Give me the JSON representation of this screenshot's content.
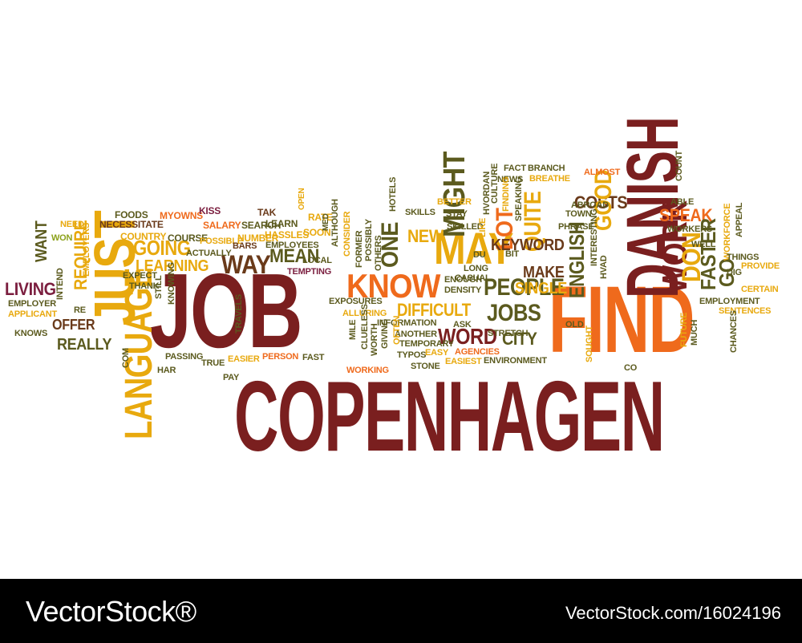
{
  "palette": {
    "maroon": "#7a1f1f",
    "orange": "#ef6a1c",
    "gold": "#e8a90e",
    "olive": "#5b5a1e",
    "brown": "#6a3a1a",
    "lime": "#8ca11a",
    "wine": "#7b1e3f"
  },
  "words": [
    {
      "text": "COPENHAGEN",
      "color": "maroon"
    },
    {
      "text": "JOB",
      "color": "maroon"
    },
    {
      "text": "FIND",
      "color": "orange"
    },
    {
      "text": "DANISH",
      "color": "maroon"
    },
    {
      "text": "JUST",
      "color": "gold"
    },
    {
      "text": "LANGUAGE",
      "color": "gold"
    },
    {
      "text": "MAY",
      "color": "gold"
    },
    {
      "text": "KNOW",
      "color": "orange"
    },
    {
      "text": "WAY",
      "color": "brown"
    },
    {
      "text": "PEOPLE",
      "color": "olive"
    },
    {
      "text": "WORK",
      "color": "maroon"
    },
    {
      "text": "JOBS",
      "color": "olive"
    },
    {
      "text": "DIFFICULT",
      "color": "gold"
    },
    {
      "text": "WORD",
      "color": "maroon"
    },
    {
      "text": "CITY",
      "color": "olive"
    },
    {
      "text": "REALLY",
      "color": "olive"
    },
    {
      "text": "OFFER",
      "color": "brown"
    },
    {
      "text": "LIVING",
      "color": "wine"
    },
    {
      "text": "WANT",
      "color": "olive"
    },
    {
      "text": "REQUIRE",
      "color": "gold"
    },
    {
      "text": "GOING",
      "color": "gold"
    },
    {
      "text": "LEARNING",
      "color": "gold"
    },
    {
      "text": "MEAN",
      "color": "olive"
    },
    {
      "text": "NEW",
      "color": "gold"
    },
    {
      "text": "ONE",
      "color": "olive"
    },
    {
      "text": "MIGHT",
      "color": "olive"
    },
    {
      "text": "LOT",
      "color": "orange"
    },
    {
      "text": "QUITE",
      "color": "gold"
    },
    {
      "text": "MAKE",
      "color": "brown"
    },
    {
      "text": "KEYWORD",
      "color": "brown"
    },
    {
      "text": "SINGLE",
      "color": "gold"
    },
    {
      "text": "ENGLISH",
      "color": "olive"
    },
    {
      "text": "COSTS",
      "color": "brown"
    },
    {
      "text": "GOOD",
      "color": "gold"
    },
    {
      "text": "SPEAK",
      "color": "orange"
    },
    {
      "text": "FASTER",
      "color": "olive"
    },
    {
      "text": "DON",
      "color": "gold"
    },
    {
      "text": "GO",
      "color": "olive"
    },
    {
      "text": "FOODS",
      "color": "olive"
    },
    {
      "text": "NECESSITATE",
      "color": "brown"
    },
    {
      "text": "MYOWNS",
      "color": "orange"
    },
    {
      "text": "KISS",
      "color": "wine"
    },
    {
      "text": "TAK",
      "color": "brown"
    },
    {
      "text": "RATE",
      "color": "gold"
    },
    {
      "text": "SALARY",
      "color": "orange"
    },
    {
      "text": "SEARCH",
      "color": "olive"
    },
    {
      "text": "LEARN",
      "color": "olive"
    },
    {
      "text": "SOON",
      "color": "gold"
    },
    {
      "text": "COUNTRY",
      "color": "gold"
    },
    {
      "text": "COURSE",
      "color": "olive"
    },
    {
      "text": "NUMBER",
      "color": "gold"
    },
    {
      "text": "HASSLES",
      "color": "gold"
    },
    {
      "text": "POSSIBLE",
      "color": "gold"
    },
    {
      "text": "BARS",
      "color": "brown"
    },
    {
      "text": "EMPLOYEES",
      "color": "olive"
    },
    {
      "text": "ACTUALLY",
      "color": "olive"
    },
    {
      "text": "LOCAL",
      "color": "olive"
    },
    {
      "text": "TEMPTING",
      "color": "wine"
    },
    {
      "text": "NEED",
      "color": "gold"
    },
    {
      "text": "WON",
      "color": "lime"
    },
    {
      "text": "INTEND",
      "color": "olive"
    },
    {
      "text": "EMPLOYERS",
      "color": "gold"
    },
    {
      "text": "EXPECT",
      "color": "olive"
    },
    {
      "text": "THANK",
      "color": "olive"
    },
    {
      "text": "EMPLOYER",
      "color": "olive"
    },
    {
      "text": "APPLICANT",
      "color": "gold"
    },
    {
      "text": "KNOWS",
      "color": "olive"
    },
    {
      "text": "RE",
      "color": "olive"
    },
    {
      "text": "STILL",
      "color": "olive"
    },
    {
      "text": "KNOWING",
      "color": "olive"
    },
    {
      "text": "TRAVELS",
      "color": "olive"
    },
    {
      "text": "COM",
      "color": "olive"
    },
    {
      "text": "HAR",
      "color": "olive"
    },
    {
      "text": "PASSING",
      "color": "olive"
    },
    {
      "text": "TRUE",
      "color": "olive"
    },
    {
      "text": "PAY",
      "color": "olive"
    },
    {
      "text": "EASIER",
      "color": "gold"
    },
    {
      "text": "PERSON",
      "color": "orange"
    },
    {
      "text": "FAST",
      "color": "olive"
    },
    {
      "text": "EXPOSURES",
      "color": "olive"
    },
    {
      "text": "ALLURING",
      "color": "gold"
    },
    {
      "text": "INFORMATION",
      "color": "olive"
    },
    {
      "text": "ANOTHER",
      "color": "olive"
    },
    {
      "text": "ASK",
      "color": "olive"
    },
    {
      "text": "STRETCH",
      "color": "olive"
    },
    {
      "text": "TEMPORARY",
      "color": "olive"
    },
    {
      "text": "EASY",
      "color": "gold"
    },
    {
      "text": "AGENCIES",
      "color": "orange"
    },
    {
      "text": "STONE",
      "color": "olive"
    },
    {
      "text": "EASIEST",
      "color": "gold"
    },
    {
      "text": "ENVIRONMENT",
      "color": "olive"
    },
    {
      "text": "OPEN",
      "color": "gold"
    },
    {
      "text": "HOTELS",
      "color": "olive"
    },
    {
      "text": "SKILLS",
      "color": "olive"
    },
    {
      "text": "BETTER",
      "color": "gold"
    },
    {
      "text": "STAY",
      "color": "olive"
    },
    {
      "text": "SKILLED",
      "color": "olive"
    },
    {
      "text": "HVORDAN",
      "color": "olive"
    },
    {
      "text": "LIKE",
      "color": "gold"
    },
    {
      "text": "DU",
      "color": "olive"
    },
    {
      "text": "LONG",
      "color": "olive"
    },
    {
      "text": "CASUAL",
      "color": "olive"
    },
    {
      "text": "ENOUGH",
      "color": "olive"
    },
    {
      "text": "DENSITY",
      "color": "olive"
    },
    {
      "text": "MED",
      "color": "olive"
    },
    {
      "text": "ALTHOUGH",
      "color": "olive"
    },
    {
      "text": "CONSIDER",
      "color": "gold"
    },
    {
      "text": "FORMER",
      "color": "olive"
    },
    {
      "text": "POSSIBLY",
      "color": "olive"
    },
    {
      "text": "OTHERS",
      "color": "olive"
    },
    {
      "text": "CLUELESS",
      "color": "olive"
    },
    {
      "text": "WORKING",
      "color": "orange"
    },
    {
      "text": "MILE",
      "color": "olive"
    },
    {
      "text": "WORTH",
      "color": "olive"
    },
    {
      "text": "GIVING",
      "color": "olive"
    },
    {
      "text": "OFTEN",
      "color": "gold"
    },
    {
      "text": "TYPOS",
      "color": "olive"
    },
    {
      "text": "FACT",
      "color": "olive"
    },
    {
      "text": "NEWS",
      "color": "olive"
    },
    {
      "text": "BRANCH",
      "color": "olive"
    },
    {
      "text": "BREATHE",
      "color": "gold"
    },
    {
      "text": "ALMOST",
      "color": "orange"
    },
    {
      "text": "CULTURE",
      "color": "olive"
    },
    {
      "text": "FINDING",
      "color": "gold"
    },
    {
      "text": "SPEAKING",
      "color": "olive"
    },
    {
      "text": "TOWN",
      "color": "olive"
    },
    {
      "text": "ABROAD",
      "color": "olive"
    },
    {
      "text": "PHRASE",
      "color": "olive"
    },
    {
      "text": "BIT",
      "color": "olive"
    },
    {
      "text": "INTERESTING",
      "color": "olive"
    },
    {
      "text": "HVAD",
      "color": "olive"
    },
    {
      "text": "OLD",
      "color": "olive"
    },
    {
      "text": "SOUGHT",
      "color": "gold"
    },
    {
      "text": "COUNT",
      "color": "olive"
    },
    {
      "text": "ABLE",
      "color": "olive"
    },
    {
      "text": "WORKERS",
      "color": "olive"
    },
    {
      "text": "WELL",
      "color": "olive"
    },
    {
      "text": "WORKFORCE",
      "color": "gold"
    },
    {
      "text": "APPEAL",
      "color": "olive"
    },
    {
      "text": "THINGS",
      "color": "olive"
    },
    {
      "text": "PROVIDE",
      "color": "gold"
    },
    {
      "text": "DIG",
      "color": "olive"
    },
    {
      "text": "CERTAIN",
      "color": "gold"
    },
    {
      "text": "EMPLOYMENT",
      "color": "olive"
    },
    {
      "text": "SENTENCES",
      "color": "gold"
    },
    {
      "text": "CHANCES",
      "color": "olive"
    },
    {
      "text": "FUTURE",
      "color": "gold"
    },
    {
      "text": "MUCH",
      "color": "olive"
    },
    {
      "text": "CO",
      "color": "olive"
    }
  ],
  "footer": {
    "brand": "VectorStock®",
    "id": "VectorStock.com/16024196"
  }
}
